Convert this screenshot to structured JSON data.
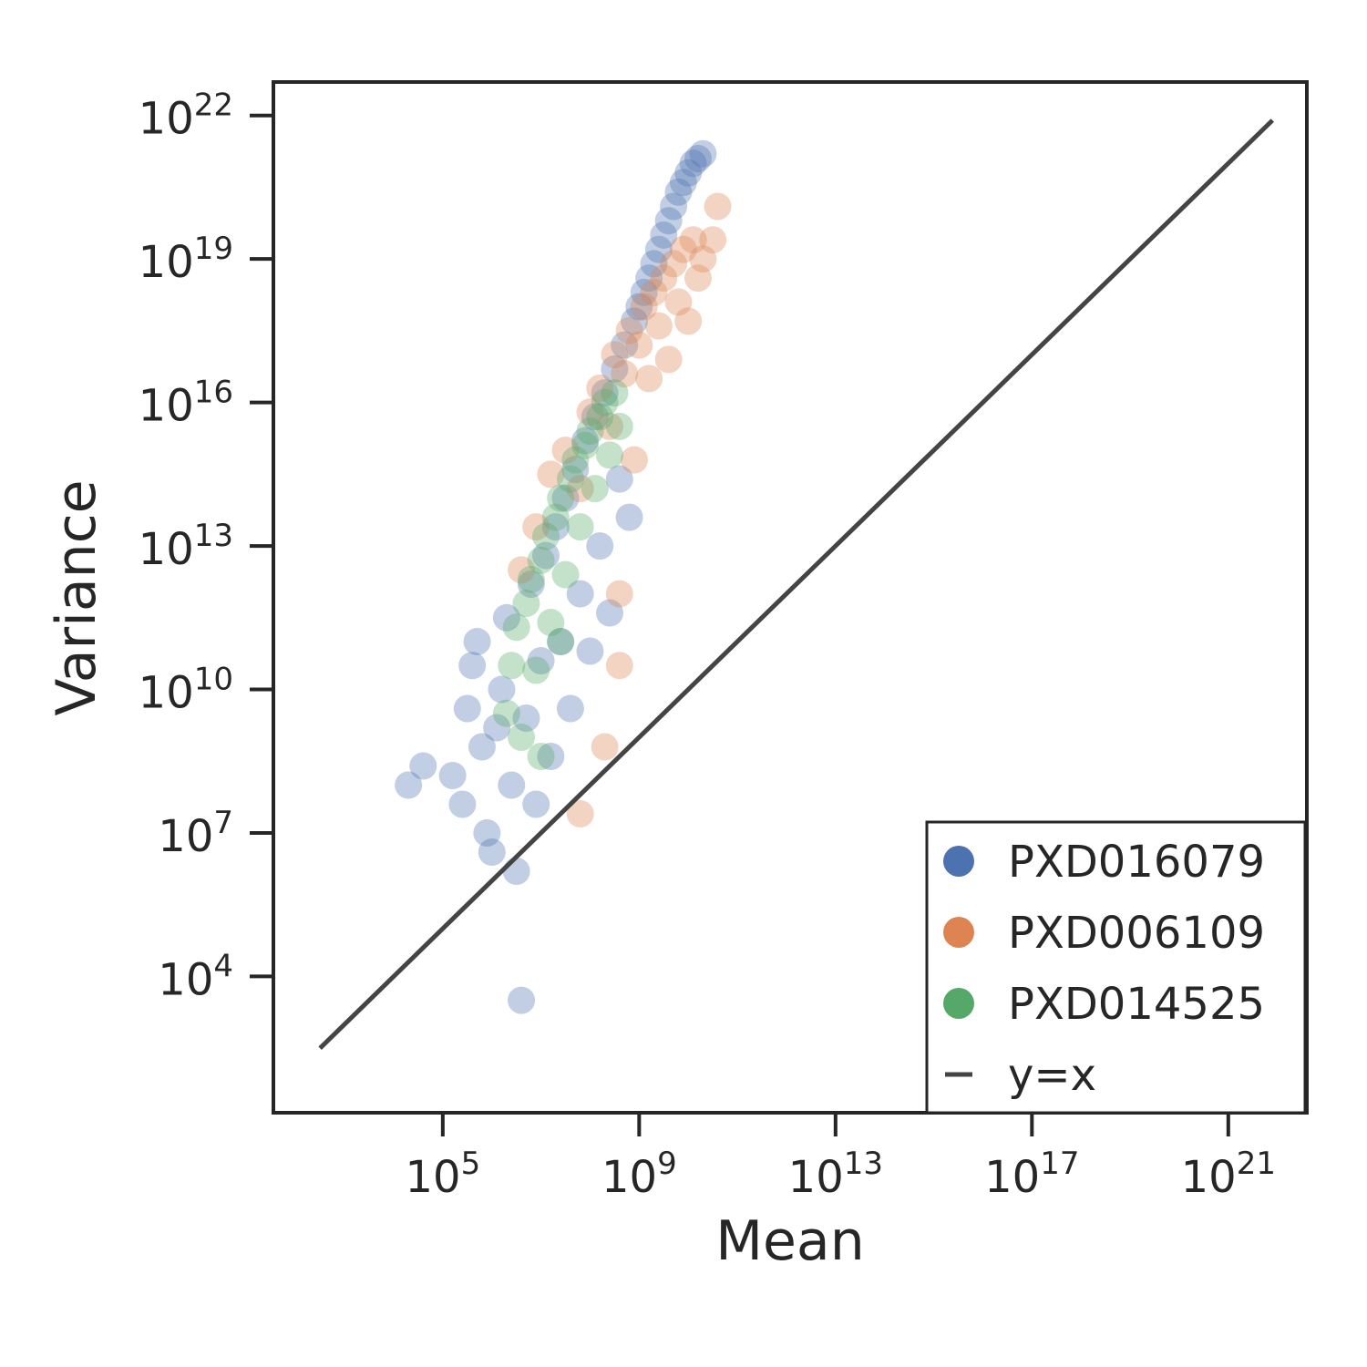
{
  "chart_data": {
    "type": "scatter",
    "title": "",
    "xlabel": "Mean",
    "ylabel": "Variance",
    "xscale": "log",
    "yscale": "log",
    "xlim_log10": [
      1.55,
      22.6
    ],
    "ylim_log10": [
      1.15,
      22.7
    ],
    "xticks": [
      {
        "base": "10",
        "exp": "5",
        "log10": 5
      },
      {
        "base": "10",
        "exp": "9",
        "log10": 9
      },
      {
        "base": "10",
        "exp": "13",
        "log10": 13
      },
      {
        "base": "10",
        "exp": "17",
        "log10": 17
      },
      {
        "base": "10",
        "exp": "21",
        "log10": 21
      }
    ],
    "yticks": [
      {
        "base": "10",
        "exp": "4",
        "log10": 4
      },
      {
        "base": "10",
        "exp": "7",
        "log10": 7
      },
      {
        "base": "10",
        "exp": "10",
        "log10": 10
      },
      {
        "base": "10",
        "exp": "13",
        "log10": 13
      },
      {
        "base": "10",
        "exp": "16",
        "log10": 16
      },
      {
        "base": "10",
        "exp": "19",
        "log10": 19
      },
      {
        "base": "10",
        "exp": "22",
        "log10": 22
      }
    ],
    "grid": false,
    "legend_position": "lower-right",
    "series": [
      {
        "name": "PXD016079",
        "color": "#4c72b0",
        "log10_points": [
          [
            5.2,
            8.2
          ],
          [
            5.4,
            7.6
          ],
          [
            5.5,
            9.6
          ],
          [
            5.6,
            10.5
          ],
          [
            5.7,
            11.0
          ],
          [
            5.8,
            8.8
          ],
          [
            5.9,
            7.0
          ],
          [
            6.0,
            6.6
          ],
          [
            6.1,
            9.2
          ],
          [
            6.2,
            10.0
          ],
          [
            6.3,
            11.5
          ],
          [
            6.4,
            8.0
          ],
          [
            6.5,
            6.2
          ],
          [
            6.6,
            3.5
          ],
          [
            6.7,
            9.4
          ],
          [
            6.8,
            12.2
          ],
          [
            6.9,
            7.6
          ],
          [
            7.0,
            10.6
          ],
          [
            7.1,
            12.8
          ],
          [
            7.2,
            8.6
          ],
          [
            7.3,
            13.4
          ],
          [
            7.4,
            11.0
          ],
          [
            7.5,
            14.0
          ],
          [
            7.6,
            9.6
          ],
          [
            7.7,
            14.6
          ],
          [
            7.8,
            12.0
          ],
          [
            7.9,
            15.2
          ],
          [
            8.0,
            10.8
          ],
          [
            8.1,
            15.7
          ],
          [
            8.2,
            13.0
          ],
          [
            8.3,
            16.2
          ],
          [
            8.4,
            11.6
          ],
          [
            8.5,
            16.7
          ],
          [
            8.6,
            14.4
          ],
          [
            8.7,
            17.2
          ],
          [
            8.8,
            13.6
          ],
          [
            8.9,
            17.7
          ],
          [
            9.0,
            18.0
          ],
          [
            9.1,
            18.3
          ],
          [
            9.2,
            18.6
          ],
          [
            9.3,
            18.9
          ],
          [
            9.4,
            19.2
          ],
          [
            9.5,
            19.5
          ],
          [
            9.6,
            19.8
          ],
          [
            9.7,
            20.1
          ],
          [
            9.8,
            20.4
          ],
          [
            9.9,
            20.6
          ],
          [
            10.0,
            20.8
          ],
          [
            10.1,
            21.0
          ],
          [
            10.2,
            21.1
          ],
          [
            10.3,
            21.2
          ],
          [
            4.3,
            8.0
          ],
          [
            4.6,
            8.4
          ]
        ]
      },
      {
        "name": "PXD006109",
        "color": "#dd8452",
        "log10_points": [
          [
            6.6,
            12.5
          ],
          [
            6.9,
            13.4
          ],
          [
            7.2,
            14.5
          ],
          [
            7.5,
            15.0
          ],
          [
            7.8,
            14.2
          ],
          [
            8.0,
            15.8
          ],
          [
            8.2,
            16.3
          ],
          [
            8.4,
            15.5
          ],
          [
            8.5,
            17.0
          ],
          [
            8.6,
            12.0
          ],
          [
            8.7,
            16.6
          ],
          [
            8.8,
            17.5
          ],
          [
            8.9,
            14.8
          ],
          [
            9.0,
            17.2
          ],
          [
            9.1,
            18.0
          ],
          [
            9.2,
            16.5
          ],
          [
            9.3,
            18.3
          ],
          [
            9.4,
            17.6
          ],
          [
            9.5,
            18.6
          ],
          [
            9.6,
            16.9
          ],
          [
            9.7,
            18.9
          ],
          [
            9.8,
            18.1
          ],
          [
            9.9,
            19.2
          ],
          [
            10.0,
            17.7
          ],
          [
            10.1,
            19.4
          ],
          [
            10.2,
            18.6
          ],
          [
            10.3,
            19.0
          ],
          [
            10.5,
            19.4
          ],
          [
            10.6,
            20.1
          ],
          [
            8.3,
            8.8
          ],
          [
            7.8,
            7.4
          ],
          [
            8.6,
            10.5
          ]
        ]
      },
      {
        "name": "PXD014525",
        "color": "#55a868",
        "log10_points": [
          [
            6.3,
            9.5
          ],
          [
            6.4,
            10.5
          ],
          [
            6.5,
            11.3
          ],
          [
            6.6,
            9.0
          ],
          [
            6.7,
            11.8
          ],
          [
            6.8,
            12.3
          ],
          [
            6.9,
            10.4
          ],
          [
            7.0,
            12.7
          ],
          [
            7.1,
            13.2
          ],
          [
            7.2,
            11.4
          ],
          [
            7.3,
            13.6
          ],
          [
            7.4,
            14.0
          ],
          [
            7.5,
            12.4
          ],
          [
            7.6,
            14.4
          ],
          [
            7.7,
            14.8
          ],
          [
            7.8,
            13.4
          ],
          [
            7.9,
            15.1
          ],
          [
            8.0,
            15.4
          ],
          [
            8.1,
            14.2
          ],
          [
            8.2,
            15.7
          ],
          [
            8.3,
            16.0
          ],
          [
            8.4,
            14.9
          ],
          [
            8.5,
            16.2
          ],
          [
            8.6,
            15.5
          ],
          [
            7.0,
            8.6
          ],
          [
            7.4,
            11.0
          ]
        ]
      },
      {
        "name": "y=x",
        "type": "line",
        "color": "#444444",
        "log10_points": [
          [
            2.5,
            2.5
          ],
          [
            21.9,
            21.9
          ]
        ]
      }
    ]
  }
}
